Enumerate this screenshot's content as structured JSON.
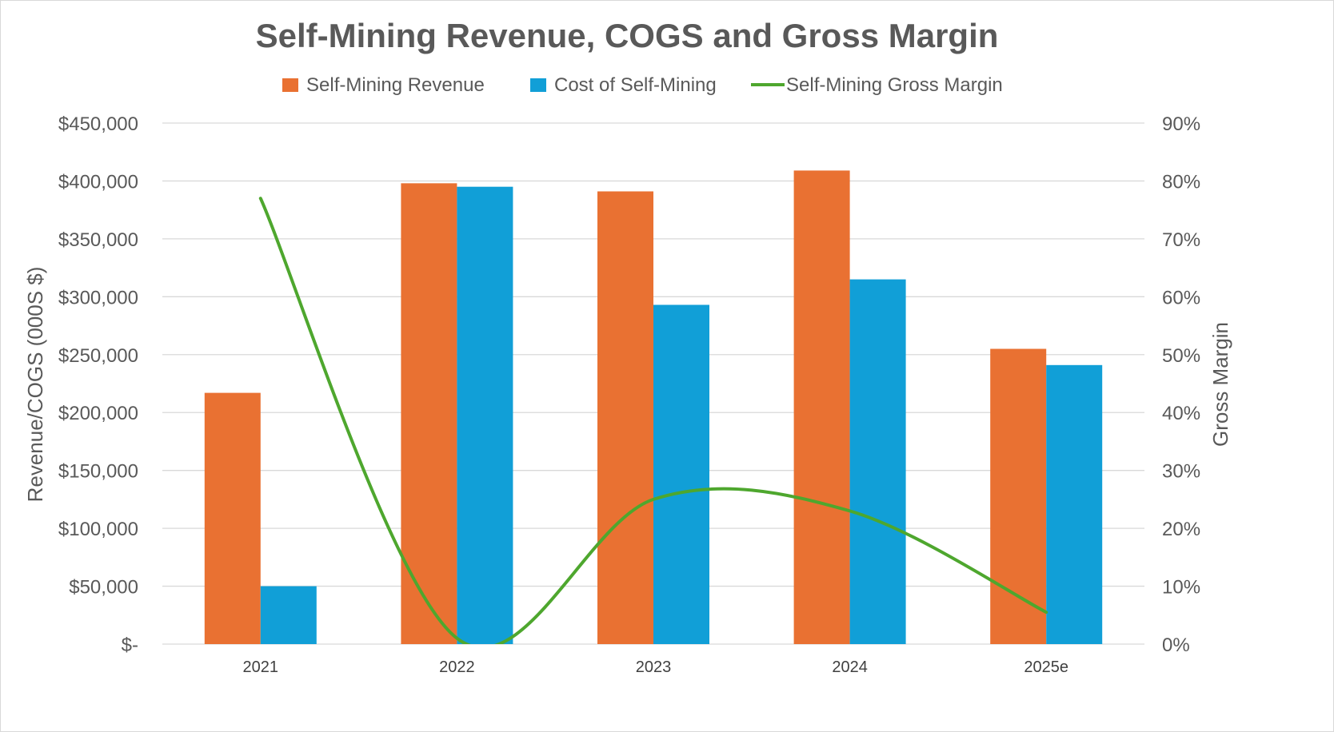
{
  "chart_data": {
    "type": "bar",
    "title": "Self-Mining Revenue, COGS and Gross Margin",
    "categories": [
      "2021",
      "2022",
      "2023",
      "2024",
      "2025e"
    ],
    "series": [
      {
        "name": "Self-Mining Revenue",
        "kind": "bar",
        "axis": "left",
        "color": "#E97132",
        "values": [
          217000,
          398000,
          391000,
          409000,
          255000
        ]
      },
      {
        "name": "Cost of Self-Mining",
        "kind": "bar",
        "axis": "left",
        "color": "#119FD7",
        "values": [
          50000,
          395000,
          293000,
          315000,
          241000
        ]
      },
      {
        "name": "Self-Mining Gross Margin",
        "kind": "line",
        "axis": "right",
        "color": "#4EA72E",
        "smooth": true,
        "values": [
          0.77,
          0.01,
          0.25,
          0.23,
          0.055
        ]
      }
    ],
    "ylabel": "Revenue/COGS (000S $)",
    "y2label": "Gross Margin",
    "ylim": [
      0,
      450000
    ],
    "y2lim": [
      0,
      0.9
    ],
    "yticks": [
      "$-",
      "$50,000",
      "$100,000",
      "$150,000",
      "$200,000",
      "$250,000",
      "$300,000",
      "$350,000",
      "$400,000",
      "$450,000"
    ],
    "y2ticks": [
      "0%",
      "10%",
      "20%",
      "30%",
      "40%",
      "50%",
      "60%",
      "70%",
      "80%",
      "90%"
    ],
    "grid": true,
    "legend": "top"
  }
}
